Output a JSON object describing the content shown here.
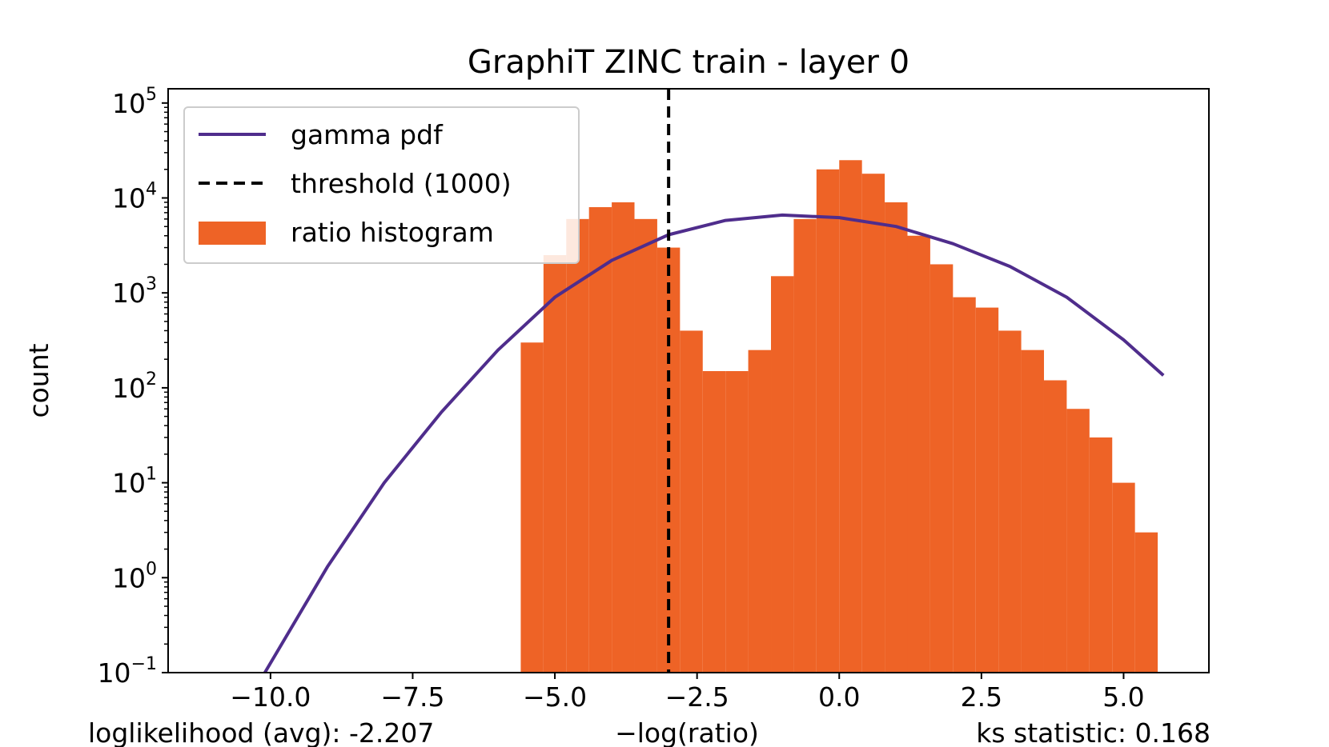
{
  "chart_data": {
    "type": "bar",
    "title": "GraphiT ZINC train - layer 0",
    "xlabel": "−log(ratio)",
    "ylabel": "count",
    "xlim": [
      -11.8,
      6.5
    ],
    "ylim_log10": [
      -1,
      5.15
    ],
    "yscale": "log",
    "x_ticks": [
      {
        "value": -10.0,
        "label": "−10.0"
      },
      {
        "value": -7.5,
        "label": "−7.5"
      },
      {
        "value": -5.0,
        "label": "−5.0"
      },
      {
        "value": -2.5,
        "label": "−2.5"
      },
      {
        "value": 0.0,
        "label": "0.0"
      },
      {
        "value": 2.5,
        "label": "2.5"
      },
      {
        "value": 5.0,
        "label": "5.0"
      }
    ],
    "y_ticks": [
      {
        "exp": -1,
        "base": "10",
        "sup": "−1"
      },
      {
        "exp": 0,
        "base": "10",
        "sup": "0"
      },
      {
        "exp": 1,
        "base": "10",
        "sup": "1"
      },
      {
        "exp": 2,
        "base": "10",
        "sup": "2"
      },
      {
        "exp": 3,
        "base": "10",
        "sup": "3"
      },
      {
        "exp": 4,
        "base": "10",
        "sup": "4"
      },
      {
        "exp": 5,
        "base": "10",
        "sup": "5"
      }
    ],
    "legend": {
      "placement": "upper-left",
      "entries": [
        "gamma pdf",
        "threshold (1000)",
        "ratio histogram"
      ]
    },
    "threshold": {
      "x": -3.0,
      "label": "threshold (1000)",
      "color": "#000000"
    },
    "gamma_pdf": {
      "label": "gamma pdf",
      "color": "#4f2d8c",
      "x": [
        -10.1,
        -9.0,
        -8.0,
        -7.0,
        -6.0,
        -5.0,
        -4.0,
        -3.0,
        -2.0,
        -1.0,
        0.0,
        1.0,
        2.0,
        3.0,
        4.0,
        5.0,
        5.7
      ],
      "y": [
        0.1,
        1.3,
        10,
        55,
        250,
        900,
        2200,
        4100,
        5800,
        6600,
        6200,
        5000,
        3300,
        1900,
        900,
        320,
        135
      ]
    },
    "histogram": {
      "label": "ratio histogram",
      "color": "#ee6326",
      "x_range": [
        -5.6,
        5.7
      ],
      "bin_centers": [
        -5.4,
        -5.0,
        -4.6,
        -4.2,
        -3.8,
        -3.4,
        -3.0,
        -2.6,
        -2.2,
        -1.8,
        -1.4,
        -1.0,
        -0.6,
        -0.2,
        0.2,
        0.6,
        1.0,
        1.4,
        1.8,
        2.2,
        2.6,
        3.0,
        3.4,
        3.8,
        4.2,
        4.6,
        5.0,
        5.4
      ],
      "counts": [
        300,
        2500,
        6000,
        8000,
        9000,
        6000,
        3000,
        400,
        150,
        150,
        250,
        1500,
        6000,
        20000,
        25000,
        18000,
        9000,
        4000,
        2000,
        900,
        700,
        400,
        250,
        120,
        60,
        30,
        10,
        3
      ]
    },
    "annotations": {
      "loglikelihood": "loglikelihood (avg): -2.207",
      "ks_statistic": "ks statistic: 0.168"
    }
  }
}
